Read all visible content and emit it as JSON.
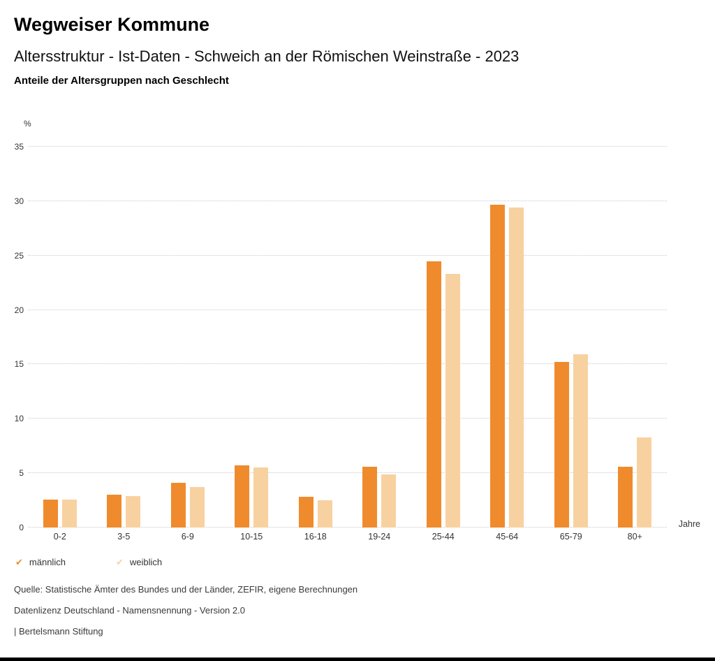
{
  "header": {
    "title": "Wegweiser Kommune",
    "subtitle": "Altersstruktur - Ist-Daten - Schweich an der Römischen Weinstraße - 2023",
    "chart_heading": "Anteile der Altersgruppen nach Geschlecht"
  },
  "chart_data": {
    "type": "bar",
    "title": "Anteile der Altersgruppen nach Geschlecht",
    "categories": [
      "0-2",
      "3-5",
      "6-9",
      "10-15",
      "16-18",
      "19-24",
      "25-44",
      "45-64",
      "65-79",
      "80+"
    ],
    "series": [
      {
        "name": "männlich",
        "color": "#ef8b2c",
        "values": [
          2.6,
          3.0,
          4.1,
          5.7,
          2.8,
          5.6,
          24.5,
          29.7,
          15.2,
          5.6
        ]
      },
      {
        "name": "weiblich",
        "color": "#f8d1a1",
        "values": [
          2.6,
          2.9,
          3.7,
          5.5,
          2.5,
          4.9,
          23.3,
          29.4,
          15.9,
          8.3
        ]
      }
    ],
    "ylabel": "%",
    "xlabel": "Jahre",
    "ylim": [
      0,
      35
    ],
    "yticks": [
      0,
      5,
      10,
      15,
      20,
      25,
      30,
      35
    ],
    "grid": "dotted horizontal",
    "legend_position": "bottom-left"
  },
  "legend": {
    "items": [
      {
        "label": "männlich",
        "color": "#ef8b2c"
      },
      {
        "label": "weiblich",
        "color": "#f8d1a1"
      }
    ]
  },
  "footer": {
    "source": "Quelle: Statistische Ämter des Bundes und der Länder, ZEFIR, eigene Berechnungen",
    "license": "Datenlizenz Deutschland - Namensnennung - Version 2.0",
    "attribution": "| Bertelsmann Stiftung"
  }
}
